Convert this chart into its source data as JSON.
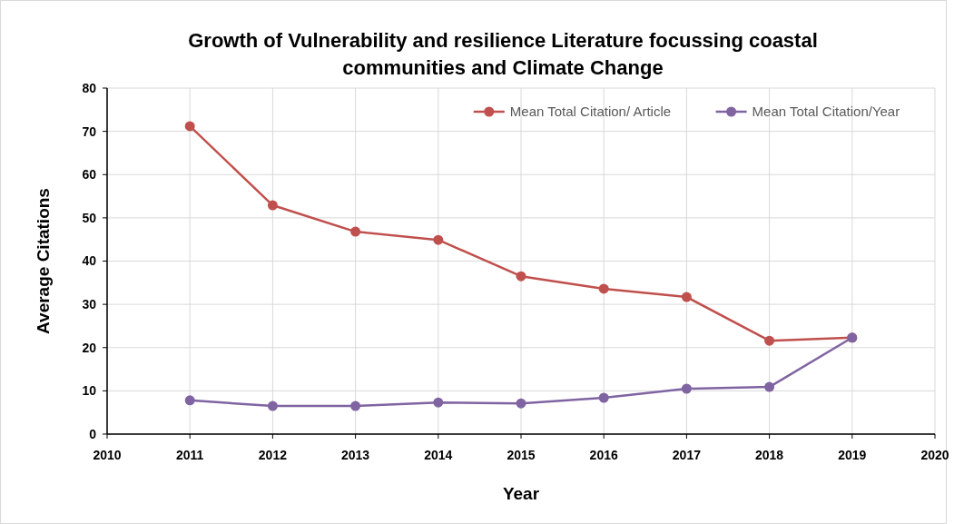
{
  "chart_data": {
    "type": "line",
    "title": "Growth of Vulnerability and resilience Literature focussing coastal communities and Climate Change",
    "xlabel": "Year",
    "ylabel": "Average Citations",
    "x": [
      2011,
      2012,
      2013,
      2014,
      2015,
      2016,
      2017,
      2018,
      2019
    ],
    "series": [
      {
        "name": "Mean Total Citation/ Article",
        "color": "#c0504d",
        "values": [
          71.2,
          52.9,
          46.8,
          44.9,
          36.5,
          33.6,
          31.7,
          21.6,
          22.3
        ]
      },
      {
        "name": "Mean Total Citation/Year",
        "color": "#8064a2",
        "values": [
          7.8,
          6.5,
          6.5,
          7.3,
          7.1,
          8.4,
          10.5,
          10.9,
          22.3
        ]
      }
    ],
    "xlim": [
      2010,
      2020
    ],
    "xticks": [
      2010,
      2011,
      2012,
      2013,
      2014,
      2015,
      2016,
      2017,
      2018,
      2019,
      2020
    ],
    "ylim": [
      0,
      80
    ],
    "yticks": [
      0,
      10,
      20,
      30,
      40,
      50,
      60,
      70,
      80
    ],
    "grid": true,
    "legend": "top right",
    "marker": "circle",
    "line_style": "solid"
  }
}
